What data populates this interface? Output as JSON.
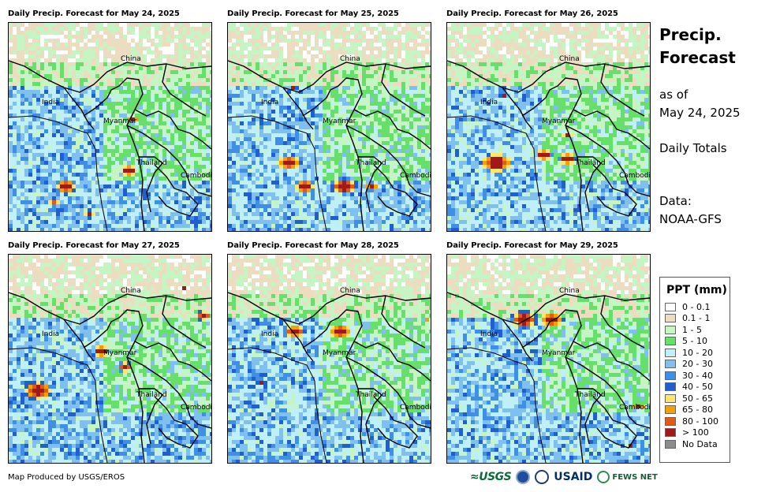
{
  "panels": [
    {
      "title": "Daily Precip. Forecast for May 24, 2025",
      "day": 0
    },
    {
      "title": "Daily Precip. Forecast for May 25, 2025",
      "day": 1
    },
    {
      "title": "Daily Precip. Forecast for May 26, 2025",
      "day": 2
    },
    {
      "title": "Daily Precip. Forecast for May 27, 2025",
      "day": 3
    },
    {
      "title": "Daily Precip. Forecast for May 28, 2025",
      "day": 4
    },
    {
      "title": "Daily Precip. Forecast for May 29, 2025",
      "day": 5
    }
  ],
  "places": {
    "china": "China",
    "india": "India",
    "myanmar": "Myanmar",
    "thailand": "Thailand",
    "cambodia": "Cambodia"
  },
  "side": {
    "title_line1": "Precip.",
    "title_line2": "Forecast",
    "asof_line1": "as of",
    "asof_line2": "May 24, 2025",
    "daily": "Daily Totals",
    "data_line1": "Data:",
    "data_line2": "NOAA-GFS"
  },
  "legend": {
    "title": "PPT (mm)",
    "items": [
      {
        "label": "0 - 0.1",
        "color": "#ffffff"
      },
      {
        "label": "0.1 - 1",
        "color": "#ecdcc0"
      },
      {
        "label": "1 - 5",
        "color": "#c6f5c4"
      },
      {
        "label": "5 - 10",
        "color": "#66e06a"
      },
      {
        "label": "10 - 20",
        "color": "#bfeff7"
      },
      {
        "label": "20 - 30",
        "color": "#7fc0ee"
      },
      {
        "label": "30 - 40",
        "color": "#3f8fe6"
      },
      {
        "label": "40 - 50",
        "color": "#1f5fd0"
      },
      {
        "label": "50 - 65",
        "color": "#ffe470"
      },
      {
        "label": "65 - 80",
        "color": "#f5a000"
      },
      {
        "label": "80 - 100",
        "color": "#e05a1a"
      },
      {
        "label": "> 100",
        "color": "#a01a1a"
      },
      {
        "label": "No Data",
        "color": "#8c8c8c"
      }
    ]
  },
  "credit": "Map Produced by USGS/EROS",
  "logos": {
    "usgs": "≈USGS",
    "usaid": "USAID",
    "fews": "FEWS NET"
  }
}
